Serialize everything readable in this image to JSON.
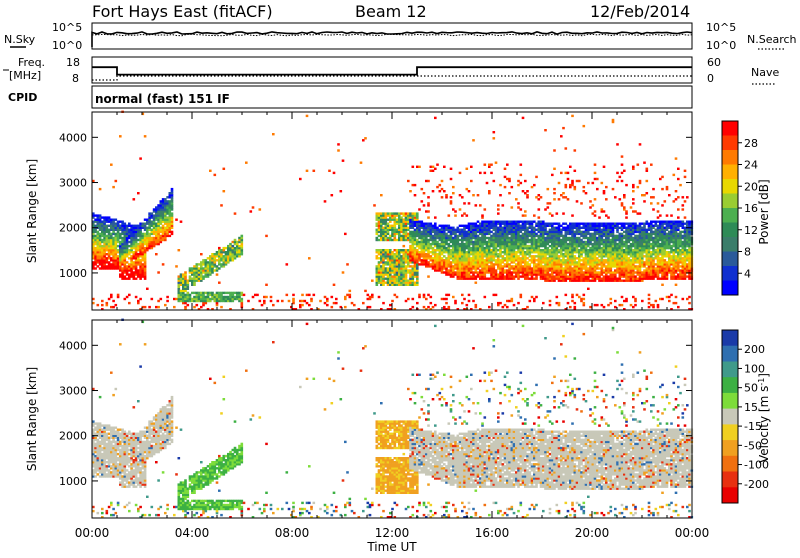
{
  "header": {
    "station": "Fort Hays East (fitACF)",
    "beam": "Beam 12",
    "date": "12/Feb/2014"
  },
  "strip_labels": {
    "nsky": "N.Sky",
    "nsky_ticks": [
      "10^5",
      "10^0"
    ],
    "nsearch": "N.Search",
    "nsearch_ticks": [
      "10^5",
      "10^0"
    ],
    "freq_line1": "Freq.",
    "freq_line2": "[MHz]",
    "freq_ticks": [
      "18",
      "8"
    ],
    "nave": "Nave",
    "nave_ticks": [
      "60",
      "0"
    ],
    "cpid": "CPID",
    "cpid_text": "normal (fast) 151 IF"
  },
  "power_colorbar": {
    "label": "Power [dB]",
    "ticks": [
      "28",
      "24",
      "20",
      "16",
      "12",
      "8",
      "4"
    ],
    "colors": [
      "#ff0000",
      "#ff3a00",
      "#ff7a00",
      "#ffb000",
      "#e8d800",
      "#9acd32",
      "#4caf50",
      "#2e8b57",
      "#3a7d6a",
      "#2a5a9a",
      "#1030d0",
      "#0000ff"
    ]
  },
  "velocity_colorbar": {
    "label_prefix": "Velocity [m s",
    "label_sup": "-1",
    "label_suffix": "]",
    "ticks": [
      "200",
      "100",
      "50",
      "15",
      "-15",
      "-50",
      "-100",
      "-200"
    ],
    "colors": [
      "#1a3aa8",
      "#2f6fb0",
      "#3f9a8a",
      "#3cb043",
      "#7ddc3a",
      "#c8c8b8",
      "#f0d020",
      "#f0a020",
      "#f07010",
      "#e83010",
      "#e80000"
    ]
  },
  "chart_data": [
    {
      "type": "heatmap",
      "title": "Power",
      "ylabel": "Slant Range [km]",
      "xlabel": "Time UT",
      "x_ticks": [
        "00:00",
        "04:00",
        "08:00",
        "12:00",
        "16:00",
        "20:00",
        "00:00"
      ],
      "y_ticks": [
        1000,
        2000,
        3000,
        4000
      ],
      "xlim_hours": [
        0,
        24
      ],
      "ylim_km": [
        180,
        4560
      ],
      "colorbar_label": "Power [dB]",
      "colorbar_range": [
        0,
        30
      ]
    },
    {
      "type": "heatmap",
      "title": "Velocity",
      "ylabel": "Slant Range [km]",
      "xlabel": "Time UT",
      "x_ticks": [
        "00:00",
        "04:00",
        "08:00",
        "12:00",
        "16:00",
        "20:00",
        "00:00"
      ],
      "y_ticks": [
        1000,
        2000,
        3000,
        4000
      ],
      "xlim_hours": [
        0,
        24
      ],
      "ylim_km": [
        180,
        4560
      ],
      "colorbar_label": "Velocity [m s-1]",
      "colorbar_range": [
        -250,
        250
      ]
    },
    {
      "type": "line",
      "title": "Freq. [MHz]",
      "x_hours": [
        0,
        1,
        1,
        13,
        13,
        24
      ],
      "freq_mhz": [
        14.5,
        14.5,
        10.5,
        10.5,
        14.5,
        14.5
      ],
      "nave": [
        0,
        0,
        12,
        12,
        12,
        12
      ]
    }
  ],
  "x_axis_label": "Time UT"
}
